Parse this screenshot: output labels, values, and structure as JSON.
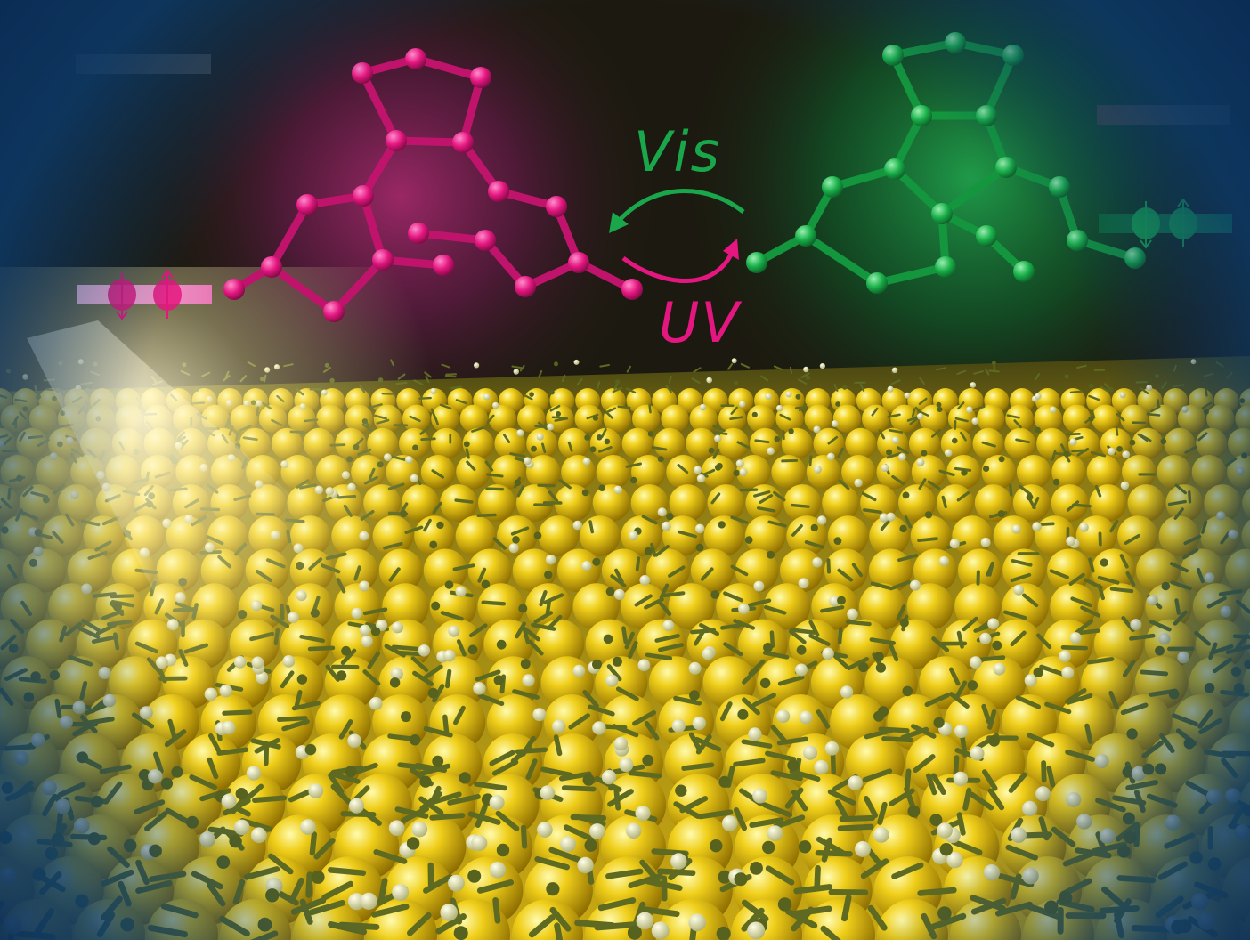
{
  "labels": {
    "visible_light": "Vis",
    "ultraviolet": "UV"
  },
  "colors": {
    "background_dark": "#1c1a10",
    "substrate_gold": "#e6c21a",
    "molecule_layer": "#6d7a2c",
    "magenta_isomer": "#e4167f",
    "green_isomer": "#19b04a",
    "frame_blue": "#0b3a6a",
    "vis_label": "#1aa64a",
    "uv_label": "#e4167f"
  },
  "icons": {
    "magenta_molecule": "photochromic-molecule-open-form",
    "green_molecule": "photochromic-molecule-closed-form",
    "spin_left": "paired-spin-orbital",
    "spin_right": "paired-spin-orbital"
  }
}
